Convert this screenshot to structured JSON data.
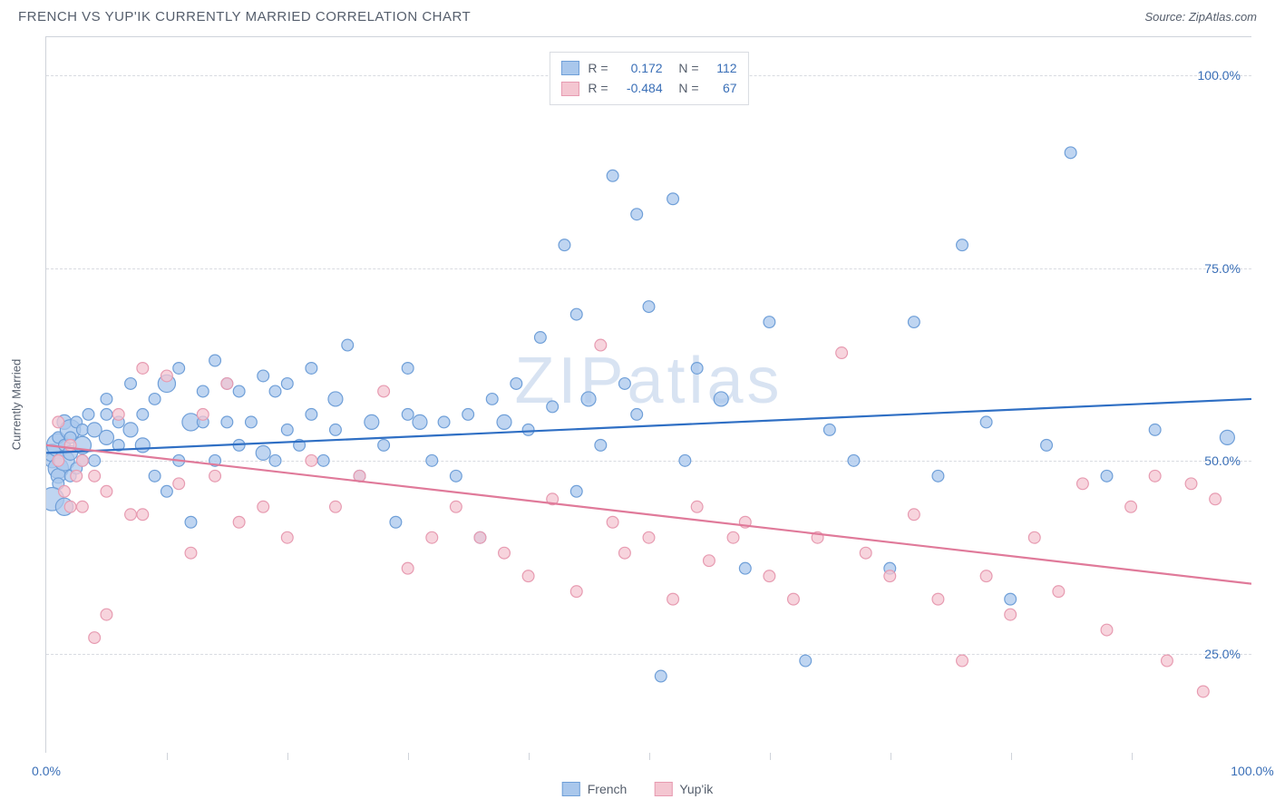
{
  "header": {
    "title": "FRENCH VS YUP'IK CURRENTLY MARRIED CORRELATION CHART",
    "source": "Source: ZipAtlas.com"
  },
  "watermark": "ZIPatlas",
  "axes": {
    "ylabel": "Currently Married",
    "xlim": [
      0,
      100
    ],
    "ylim": [
      12,
      105
    ],
    "yticks": [
      {
        "v": 25,
        "label": "25.0%"
      },
      {
        "v": 50,
        "label": "50.0%"
      },
      {
        "v": 75,
        "label": "75.0%"
      },
      {
        "v": 100,
        "label": "100.0%"
      }
    ],
    "xticks_major": [
      {
        "v": 0,
        "label": "0.0%"
      },
      {
        "v": 100,
        "label": "100.0%"
      }
    ],
    "xticks_minor": [
      10,
      20,
      30,
      40,
      50,
      60,
      70,
      80,
      90
    ]
  },
  "series": [
    {
      "name": "French",
      "fill": "#a9c7ec",
      "stroke": "#6f9fd8",
      "line_color": "#2f6fc4",
      "R": "0.172",
      "N": "112",
      "trend": {
        "x1": 0,
        "y1": 51,
        "x2": 100,
        "y2": 58
      },
      "points": [
        [
          0.5,
          50,
          10
        ],
        [
          0.5,
          51,
          12
        ],
        [
          1,
          49,
          14
        ],
        [
          1,
          52,
          16
        ],
        [
          1,
          48,
          10
        ],
        [
          1,
          47,
          8
        ],
        [
          0.5,
          45,
          16
        ],
        [
          1,
          53,
          8
        ],
        [
          1.5,
          55,
          10
        ],
        [
          1.5,
          52,
          8
        ],
        [
          1.5,
          50,
          14
        ],
        [
          1.5,
          44,
          12
        ],
        [
          2,
          51,
          10
        ],
        [
          2,
          54,
          14
        ],
        [
          2,
          53,
          8
        ],
        [
          2,
          48,
          8
        ],
        [
          2.5,
          55,
          8
        ],
        [
          2.5,
          49,
          8
        ],
        [
          3,
          52,
          12
        ],
        [
          3,
          54,
          8
        ],
        [
          3,
          50,
          8
        ],
        [
          3.5,
          56,
          8
        ],
        [
          4,
          54,
          10
        ],
        [
          4,
          50,
          8
        ],
        [
          5,
          56,
          8
        ],
        [
          5,
          53,
          10
        ],
        [
          5,
          58,
          8
        ],
        [
          6,
          52,
          8
        ],
        [
          6,
          55,
          8
        ],
        [
          7,
          60,
          8
        ],
        [
          7,
          54,
          10
        ],
        [
          8,
          52,
          10
        ],
        [
          8,
          56,
          8
        ],
        [
          9,
          58,
          8
        ],
        [
          9,
          48,
          8
        ],
        [
          10,
          60,
          12
        ],
        [
          10,
          46,
          8
        ],
        [
          11,
          50,
          8
        ],
        [
          11,
          62,
          8
        ],
        [
          12,
          55,
          12
        ],
        [
          12,
          42,
          8
        ],
        [
          13,
          55,
          8
        ],
        [
          13,
          59,
          8
        ],
        [
          14,
          63,
          8
        ],
        [
          14,
          50,
          8
        ],
        [
          15,
          55,
          8
        ],
        [
          15,
          60,
          8
        ],
        [
          16,
          52,
          8
        ],
        [
          16,
          59,
          8
        ],
        [
          17,
          55,
          8
        ],
        [
          18,
          51,
          10
        ],
        [
          18,
          61,
          8
        ],
        [
          19,
          59,
          8
        ],
        [
          19,
          50,
          8
        ],
        [
          20,
          60,
          8
        ],
        [
          20,
          54,
          8
        ],
        [
          21,
          52,
          8
        ],
        [
          22,
          56,
          8
        ],
        [
          22,
          62,
          8
        ],
        [
          23,
          50,
          8
        ],
        [
          24,
          54,
          8
        ],
        [
          24,
          58,
          10
        ],
        [
          25,
          65,
          8
        ],
        [
          26,
          48,
          8
        ],
        [
          27,
          55,
          10
        ],
        [
          28,
          52,
          8
        ],
        [
          29,
          42,
          8
        ],
        [
          30,
          56,
          8
        ],
        [
          30,
          62,
          8
        ],
        [
          31,
          55,
          10
        ],
        [
          32,
          50,
          8
        ],
        [
          33,
          55,
          8
        ],
        [
          34,
          48,
          8
        ],
        [
          35,
          56,
          8
        ],
        [
          36,
          40,
          8
        ],
        [
          37,
          58,
          8
        ],
        [
          38,
          55,
          10
        ],
        [
          39,
          60,
          8
        ],
        [
          40,
          54,
          8
        ],
        [
          41,
          66,
          8
        ],
        [
          42,
          57,
          8
        ],
        [
          43,
          78,
          8
        ],
        [
          44,
          46,
          8
        ],
        [
          44,
          69,
          8
        ],
        [
          45,
          58,
          10
        ],
        [
          46,
          52,
          8
        ],
        [
          47,
          87,
          8
        ],
        [
          48,
          60,
          8
        ],
        [
          49,
          82,
          8
        ],
        [
          49,
          56,
          8
        ],
        [
          50,
          70,
          8
        ],
        [
          51,
          22,
          8
        ],
        [
          52,
          84,
          8
        ],
        [
          53,
          50,
          8
        ],
        [
          54,
          62,
          8
        ],
        [
          56,
          58,
          10
        ],
        [
          58,
          36,
          8
        ],
        [
          60,
          68,
          8
        ],
        [
          63,
          24,
          8
        ],
        [
          65,
          54,
          8
        ],
        [
          67,
          50,
          8
        ],
        [
          70,
          36,
          8
        ],
        [
          72,
          68,
          8
        ],
        [
          74,
          48,
          8
        ],
        [
          76,
          78,
          8
        ],
        [
          78,
          55,
          8
        ],
        [
          80,
          32,
          8
        ],
        [
          83,
          52,
          8
        ],
        [
          85,
          90,
          8
        ],
        [
          88,
          48,
          8
        ],
        [
          92,
          54,
          8
        ],
        [
          98,
          53,
          10
        ]
      ]
    },
    {
      "name": "Yup'ik",
      "fill": "#f4c6d1",
      "stroke": "#e79bb1",
      "line_color": "#e07a9a",
      "R": "-0.484",
      "N": "67",
      "trend": {
        "x1": 0,
        "y1": 52,
        "x2": 100,
        "y2": 34
      },
      "points": [
        [
          1,
          55,
          8
        ],
        [
          1,
          50,
          8
        ],
        [
          1.5,
          46,
          8
        ],
        [
          2,
          52,
          8
        ],
        [
          2,
          44,
          8
        ],
        [
          2.5,
          48,
          8
        ],
        [
          3,
          50,
          8
        ],
        [
          3,
          44,
          8
        ],
        [
          4,
          27,
          8
        ],
        [
          4,
          48,
          8
        ],
        [
          5,
          30,
          8
        ],
        [
          5,
          46,
          8
        ],
        [
          6,
          56,
          8
        ],
        [
          7,
          43,
          8
        ],
        [
          8,
          43,
          8
        ],
        [
          8,
          62,
          8
        ],
        [
          10,
          61,
          8
        ],
        [
          11,
          47,
          8
        ],
        [
          12,
          38,
          8
        ],
        [
          13,
          56,
          8
        ],
        [
          14,
          48,
          8
        ],
        [
          15,
          60,
          8
        ],
        [
          16,
          42,
          8
        ],
        [
          18,
          44,
          8
        ],
        [
          20,
          40,
          8
        ],
        [
          22,
          50,
          8
        ],
        [
          24,
          44,
          8
        ],
        [
          26,
          48,
          8
        ],
        [
          28,
          59,
          8
        ],
        [
          30,
          36,
          8
        ],
        [
          32,
          40,
          8
        ],
        [
          34,
          44,
          8
        ],
        [
          36,
          40,
          8
        ],
        [
          38,
          38,
          8
        ],
        [
          40,
          35,
          8
        ],
        [
          42,
          45,
          8
        ],
        [
          44,
          33,
          8
        ],
        [
          46,
          65,
          8
        ],
        [
          47,
          42,
          8
        ],
        [
          48,
          38,
          8
        ],
        [
          50,
          40,
          8
        ],
        [
          52,
          32,
          8
        ],
        [
          54,
          44,
          8
        ],
        [
          55,
          37,
          8
        ],
        [
          57,
          40,
          8
        ],
        [
          58,
          42,
          8
        ],
        [
          60,
          35,
          8
        ],
        [
          62,
          32,
          8
        ],
        [
          64,
          40,
          8
        ],
        [
          66,
          64,
          8
        ],
        [
          68,
          38,
          8
        ],
        [
          70,
          35,
          8
        ],
        [
          72,
          43,
          8
        ],
        [
          74,
          32,
          8
        ],
        [
          76,
          24,
          8
        ],
        [
          78,
          35,
          8
        ],
        [
          80,
          30,
          8
        ],
        [
          82,
          40,
          8
        ],
        [
          84,
          33,
          8
        ],
        [
          86,
          47,
          8
        ],
        [
          88,
          28,
          8
        ],
        [
          90,
          44,
          8
        ],
        [
          92,
          48,
          8
        ],
        [
          93,
          24,
          8
        ],
        [
          95,
          47,
          8
        ],
        [
          96,
          20,
          8
        ],
        [
          97,
          45,
          8
        ]
      ]
    }
  ],
  "legend_bottom": [
    {
      "label": "French",
      "fill": "#a9c7ec",
      "stroke": "#6f9fd8"
    },
    {
      "label": "Yup'ik",
      "fill": "#f4c6d1",
      "stroke": "#e79bb1"
    }
  ],
  "chart_style": {
    "axis_text_color": "#3a6fb7",
    "label_color": "#555e6c",
    "grid_color": "#d8dbe1",
    "background": "#ffffff"
  }
}
